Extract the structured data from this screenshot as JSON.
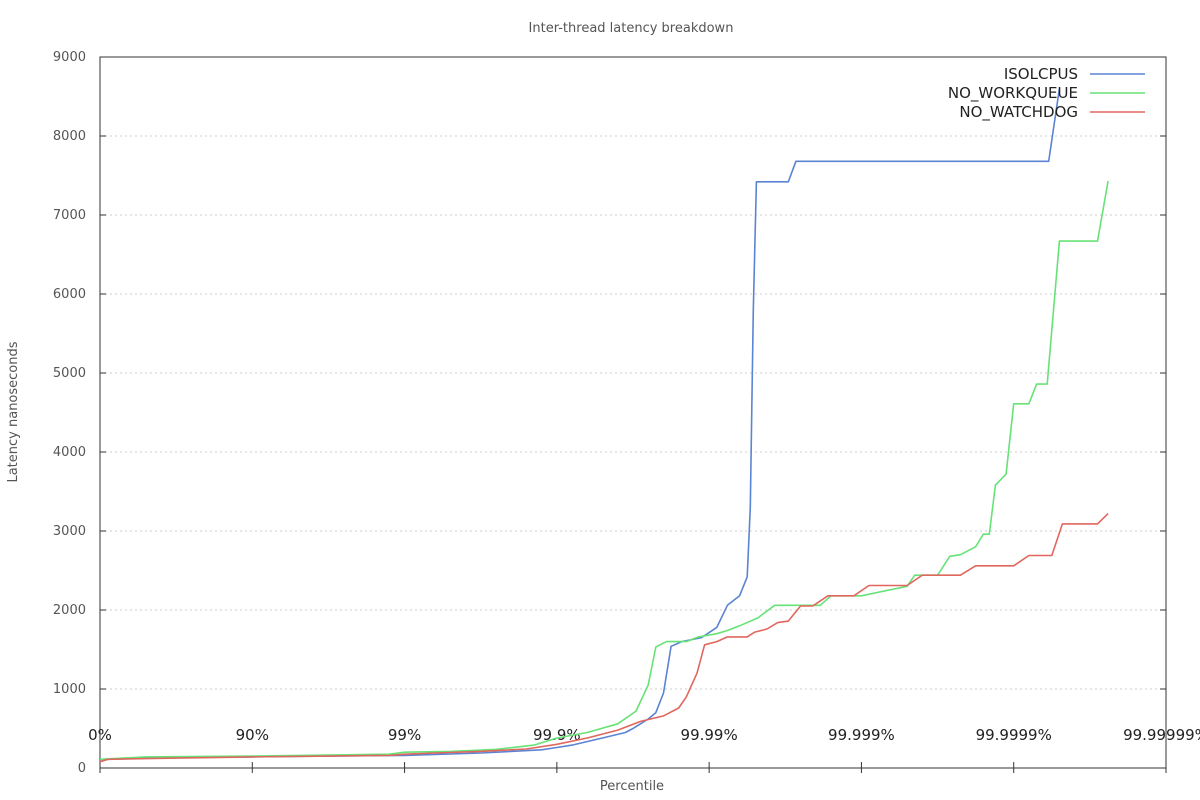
{
  "chart_data": {
    "type": "line",
    "title": "Inter-thread latency breakdown",
    "xlabel": "Percentile",
    "ylabel": "Latency nanoseconds",
    "xscale": "log (1 / (1 - percentile))",
    "ylim": [
      0,
      9000
    ],
    "y_ticks": [
      0,
      1000,
      2000,
      3000,
      4000,
      5000,
      6000,
      7000,
      8000,
      9000
    ],
    "x_ticks": [
      {
        "pos": 0,
        "label": "0%"
      },
      {
        "pos": 1,
        "label": "90%"
      },
      {
        "pos": 2,
        "label": "99%"
      },
      {
        "pos": 3,
        "label": "99.9%"
      },
      {
        "pos": 4,
        "label": "99.99%"
      },
      {
        "pos": 5,
        "label": "99.999%"
      },
      {
        "pos": 6,
        "label": "99.9999%"
      },
      {
        "pos": 7,
        "label": "99.99999%"
      }
    ],
    "xlim": [
      0,
      7
    ],
    "grid": "horizontal dashed",
    "legend_position": "top-right",
    "series": [
      {
        "name": "ISOLCPUS",
        "color": "#5b84d2",
        "points": [
          [
            0,
            80
          ],
          [
            0.05,
            110
          ],
          [
            0.3,
            125
          ],
          [
            0.7,
            135
          ],
          [
            1.0,
            140
          ],
          [
            1.5,
            150
          ],
          [
            2.0,
            160
          ],
          [
            2.5,
            190
          ],
          [
            2.9,
            230
          ],
          [
            3.0,
            260
          ],
          [
            3.1,
            290
          ],
          [
            3.3,
            380
          ],
          [
            3.45,
            450
          ],
          [
            3.5,
            500
          ],
          [
            3.6,
            620
          ],
          [
            3.65,
            700
          ],
          [
            3.7,
            950
          ],
          [
            3.75,
            1540
          ],
          [
            3.82,
            1600
          ],
          [
            3.95,
            1650
          ],
          [
            4.05,
            1780
          ],
          [
            4.12,
            2060
          ],
          [
            4.2,
            2180
          ],
          [
            4.25,
            2420
          ],
          [
            4.27,
            3300
          ],
          [
            4.29,
            5800
          ],
          [
            4.31,
            7420
          ],
          [
            4.52,
            7420
          ],
          [
            4.57,
            7680
          ],
          [
            6.23,
            7680
          ],
          [
            6.3,
            8600
          ]
        ]
      },
      {
        "name": "NO_WORKQUEUE",
        "color": "#67e277",
        "points": [
          [
            0,
            110
          ],
          [
            0.3,
            140
          ],
          [
            1.0,
            150
          ],
          [
            1.5,
            165
          ],
          [
            1.9,
            175
          ],
          [
            2.0,
            200
          ],
          [
            2.3,
            210
          ],
          [
            2.6,
            235
          ],
          [
            2.85,
            290
          ],
          [
            3.0,
            380
          ],
          [
            3.2,
            450
          ],
          [
            3.4,
            560
          ],
          [
            3.52,
            720
          ],
          [
            3.6,
            1050
          ],
          [
            3.65,
            1530
          ],
          [
            3.72,
            1600
          ],
          [
            3.85,
            1600
          ],
          [
            3.93,
            1660
          ],
          [
            4.05,
            1700
          ],
          [
            4.12,
            1740
          ],
          [
            4.2,
            1800
          ],
          [
            4.32,
            1900
          ],
          [
            4.43,
            2060
          ],
          [
            4.73,
            2060
          ],
          [
            4.8,
            2180
          ],
          [
            5.0,
            2180
          ],
          [
            5.3,
            2300
          ],
          [
            5.35,
            2440
          ],
          [
            5.5,
            2440
          ],
          [
            5.58,
            2680
          ],
          [
            5.65,
            2700
          ],
          [
            5.75,
            2800
          ],
          [
            5.8,
            2960
          ],
          [
            5.84,
            2960
          ],
          [
            5.88,
            3580
          ],
          [
            5.95,
            3720
          ],
          [
            6.0,
            4610
          ],
          [
            6.1,
            4610
          ],
          [
            6.15,
            4860
          ],
          [
            6.22,
            4860
          ],
          [
            6.3,
            6670
          ],
          [
            6.55,
            6670
          ],
          [
            6.62,
            7430
          ]
        ]
      },
      {
        "name": "NO_WATCHDOG",
        "color": "#e0675e",
        "points": [
          [
            0,
            80
          ],
          [
            0.05,
            110
          ],
          [
            0.5,
            125
          ],
          [
            1.0,
            140
          ],
          [
            1.5,
            150
          ],
          [
            1.9,
            160
          ],
          [
            2.0,
            175
          ],
          [
            2.2,
            190
          ],
          [
            2.5,
            210
          ],
          [
            2.8,
            240
          ],
          [
            3.0,
            300
          ],
          [
            3.2,
            380
          ],
          [
            3.4,
            480
          ],
          [
            3.55,
            590
          ],
          [
            3.7,
            660
          ],
          [
            3.8,
            760
          ],
          [
            3.85,
            900
          ],
          [
            3.92,
            1200
          ],
          [
            3.97,
            1560
          ],
          [
            4.05,
            1600
          ],
          [
            4.12,
            1660
          ],
          [
            4.25,
            1660
          ],
          [
            4.3,
            1720
          ],
          [
            4.38,
            1760
          ],
          [
            4.45,
            1840
          ],
          [
            4.52,
            1860
          ],
          [
            4.6,
            2050
          ],
          [
            4.68,
            2050
          ],
          [
            4.78,
            2180
          ],
          [
            4.95,
            2180
          ],
          [
            5.05,
            2310
          ],
          [
            5.3,
            2310
          ],
          [
            5.4,
            2440
          ],
          [
            5.65,
            2440
          ],
          [
            5.75,
            2560
          ],
          [
            6.0,
            2560
          ],
          [
            6.1,
            2690
          ],
          [
            6.25,
            2690
          ],
          [
            6.32,
            3090
          ],
          [
            6.55,
            3090
          ],
          [
            6.62,
            3220
          ]
        ]
      }
    ]
  }
}
